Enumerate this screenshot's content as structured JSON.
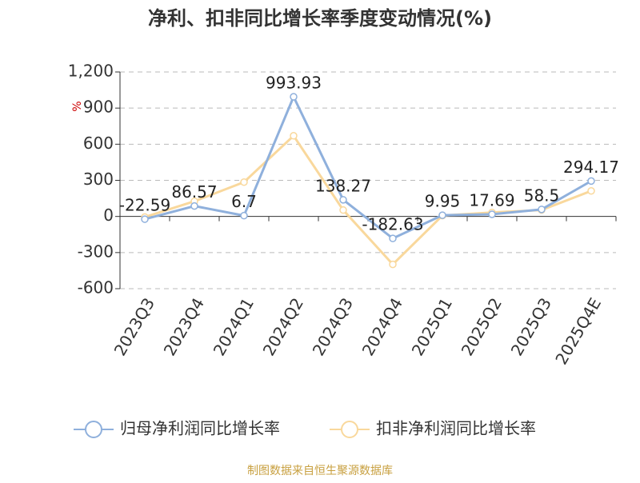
{
  "chart_data": {
    "type": "line",
    "title": "净利、扣非同比增长率季度变动情况(%)",
    "y_label": "%",
    "source": "制图数据来自恒生聚源数据库",
    "categories": [
      "2023Q3",
      "2023Q4",
      "2024Q1",
      "2024Q2",
      "2024Q3",
      "2024Q4",
      "2025Q1",
      "2025Q2",
      "2025Q3",
      "2025Q4E"
    ],
    "series": [
      {
        "name": "归母净利润同比增长率",
        "color": "#8fb0dc",
        "values": [
          -22.59,
          86.57,
          6.7,
          993.93,
          138.27,
          -182.63,
          9.95,
          17.69,
          58.5,
          294.17
        ],
        "show_labels": true
      },
      {
        "name": "扣非净利润同比增长率",
        "color": "#f9d89c",
        "values": [
          -5,
          126,
          285,
          670,
          53,
          -398,
          7,
          33,
          53,
          212
        ],
        "show_labels": false
      }
    ],
    "ylim": [
      -600,
      1200
    ],
    "yticks": [
      -600,
      -300,
      0,
      300,
      600,
      900,
      {
        "value": 1200,
        "label": "1,200"
      }
    ],
    "grid": true
  }
}
